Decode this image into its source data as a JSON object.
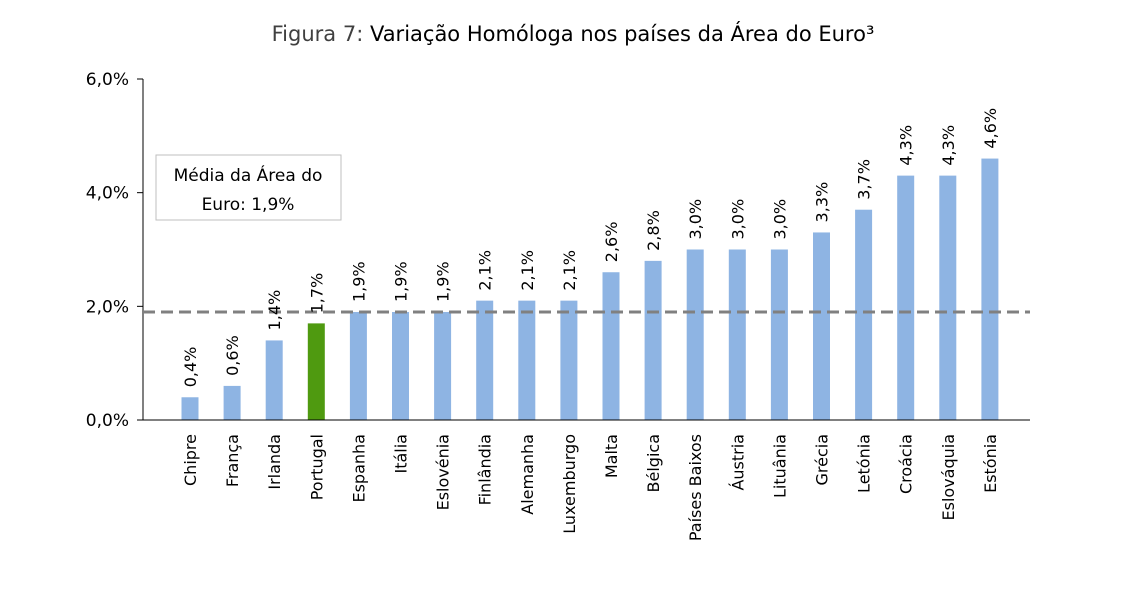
{
  "chart_data": {
    "type": "bar",
    "title_prefix": "Figura 7:",
    "title_main": "Variação Homóloga nos países da Área do Euro³",
    "categories": [
      "Chipre",
      "França",
      "Irlanda",
      "Portugal",
      "Espanha",
      "Itália",
      "Eslovénia",
      "Finlândia",
      "Alemanha",
      "Luxemburgo",
      "Malta",
      "Bélgica",
      "Países Baixos",
      "Áustria",
      "Lituânia",
      "Grécia",
      "Letónia",
      "Croácia",
      "Eslováquia",
      "Estónia"
    ],
    "values": [
      0.4,
      0.6,
      1.4,
      1.7,
      1.9,
      1.9,
      1.9,
      2.1,
      2.1,
      2.1,
      2.6,
      2.8,
      3.0,
      3.0,
      3.0,
      3.3,
      3.7,
      4.3,
      4.3,
      4.6
    ],
    "data_labels": [
      "0,4%",
      "0,6%",
      "1,4%",
      "1,7%",
      "1,9%",
      "1,9%",
      "1,9%",
      "2,1%",
      "2,1%",
      "2,1%",
      "2,6%",
      "2,8%",
      "3,0%",
      "3,0%",
      "3,0%",
      "3,3%",
      "3,7%",
      "4,3%",
      "4,3%",
      "4,6%"
    ],
    "highlight_category": "Portugal",
    "ylim": [
      0,
      6
    ],
    "yticks": [
      0,
      2,
      4,
      6
    ],
    "ytick_labels": [
      "0,0%",
      "2,0%",
      "4,0%",
      "6,0%"
    ],
    "average_value": 1.9,
    "average_label_line1": "Média da Área do",
    "average_label_line2": "Euro: 1,9%",
    "xlabel": "",
    "ylabel": "",
    "grid": false,
    "colors": {
      "bar": "#8eb4e3",
      "highlight": "#4f9a10",
      "average_line": "#808080",
      "axis": "#000000",
      "legend_border": "#bfbfbf"
    }
  }
}
